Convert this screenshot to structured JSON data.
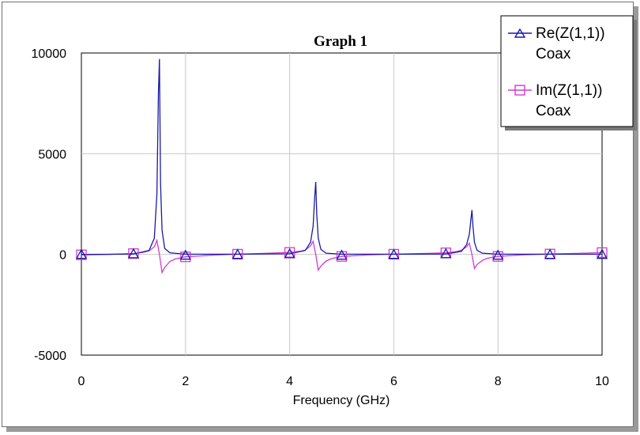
{
  "chart_data": {
    "type": "line",
    "title": "Graph 1",
    "xlabel": "Frequency (GHz)",
    "ylabel": "",
    "xlim": [
      0,
      10
    ],
    "ylim": [
      -5000,
      10000
    ],
    "xticks": [
      0,
      2,
      4,
      6,
      8,
      10
    ],
    "yticks": [
      -5000,
      0,
      5000,
      10000
    ],
    "xtick_labels": [
      "0",
      "2",
      "4",
      "6",
      "8",
      "10"
    ],
    "ytick_labels": [
      "-5000",
      "0",
      "5000",
      "10000"
    ],
    "grid": true,
    "legend": "top-right",
    "series": [
      {
        "name": "Re(Z(1,1))",
        "subname": "Coax",
        "color": "#1a1aa6",
        "marker": "triangle",
        "x": [
          0,
          0.5,
          1.0,
          1.3,
          1.4,
          1.45,
          1.48,
          1.5,
          1.52,
          1.55,
          1.6,
          1.7,
          2.0,
          3.0,
          4.0,
          4.3,
          4.4,
          4.45,
          4.48,
          4.5,
          4.52,
          4.55,
          4.6,
          4.7,
          5.0,
          6.0,
          7.0,
          7.3,
          7.4,
          7.45,
          7.48,
          7.5,
          7.52,
          7.55,
          7.6,
          7.7,
          8.0,
          9.0,
          10.0
        ],
        "y": [
          0,
          5,
          20,
          200,
          800,
          3000,
          8000,
          9700,
          3500,
          1200,
          300,
          80,
          10,
          10,
          30,
          200,
          600,
          1400,
          2800,
          3600,
          2000,
          800,
          250,
          60,
          10,
          10,
          20,
          150,
          500,
          1000,
          1700,
          2200,
          1400,
          600,
          200,
          60,
          10,
          10,
          10
        ],
        "markers_x": [
          0,
          1,
          2,
          3,
          4,
          5,
          6,
          7,
          8,
          9,
          10
        ],
        "markers_y": [
          0,
          30,
          -40,
          0,
          30,
          -40,
          0,
          30,
          -40,
          0,
          0
        ]
      },
      {
        "name": "Im(Z(1,1))",
        "subname": "Coax",
        "color": "#d23ad2",
        "marker": "square",
        "x": [
          0,
          0.5,
          1.0,
          1.2,
          1.3,
          1.4,
          1.45,
          1.5,
          1.55,
          1.6,
          1.7,
          1.8,
          2.0,
          2.5,
          3.0,
          3.5,
          4.0,
          4.2,
          4.3,
          4.4,
          4.45,
          4.5,
          4.55,
          4.6,
          4.7,
          4.8,
          5.0,
          5.5,
          6.0,
          6.5,
          7.0,
          7.2,
          7.3,
          7.4,
          7.45,
          7.5,
          7.55,
          7.6,
          7.7,
          7.8,
          8.0,
          8.5,
          9.0,
          9.5,
          10.0
        ],
        "y": [
          -20,
          0,
          40,
          110,
          180,
          380,
          700,
          0,
          -900,
          -650,
          -350,
          -230,
          -120,
          -40,
          10,
          50,
          100,
          150,
          220,
          420,
          650,
          0,
          -780,
          -580,
          -330,
          -210,
          -100,
          -30,
          10,
          40,
          80,
          140,
          210,
          380,
          560,
          0,
          -700,
          -500,
          -300,
          -190,
          -100,
          -20,
          20,
          50,
          90
        ],
        "markers_x": [
          0,
          1,
          2,
          3,
          4,
          5,
          6,
          7,
          8,
          9,
          10
        ],
        "markers_y": [
          -20,
          40,
          -120,
          10,
          100,
          -100,
          10,
          80,
          -100,
          20,
          90
        ]
      }
    ]
  }
}
